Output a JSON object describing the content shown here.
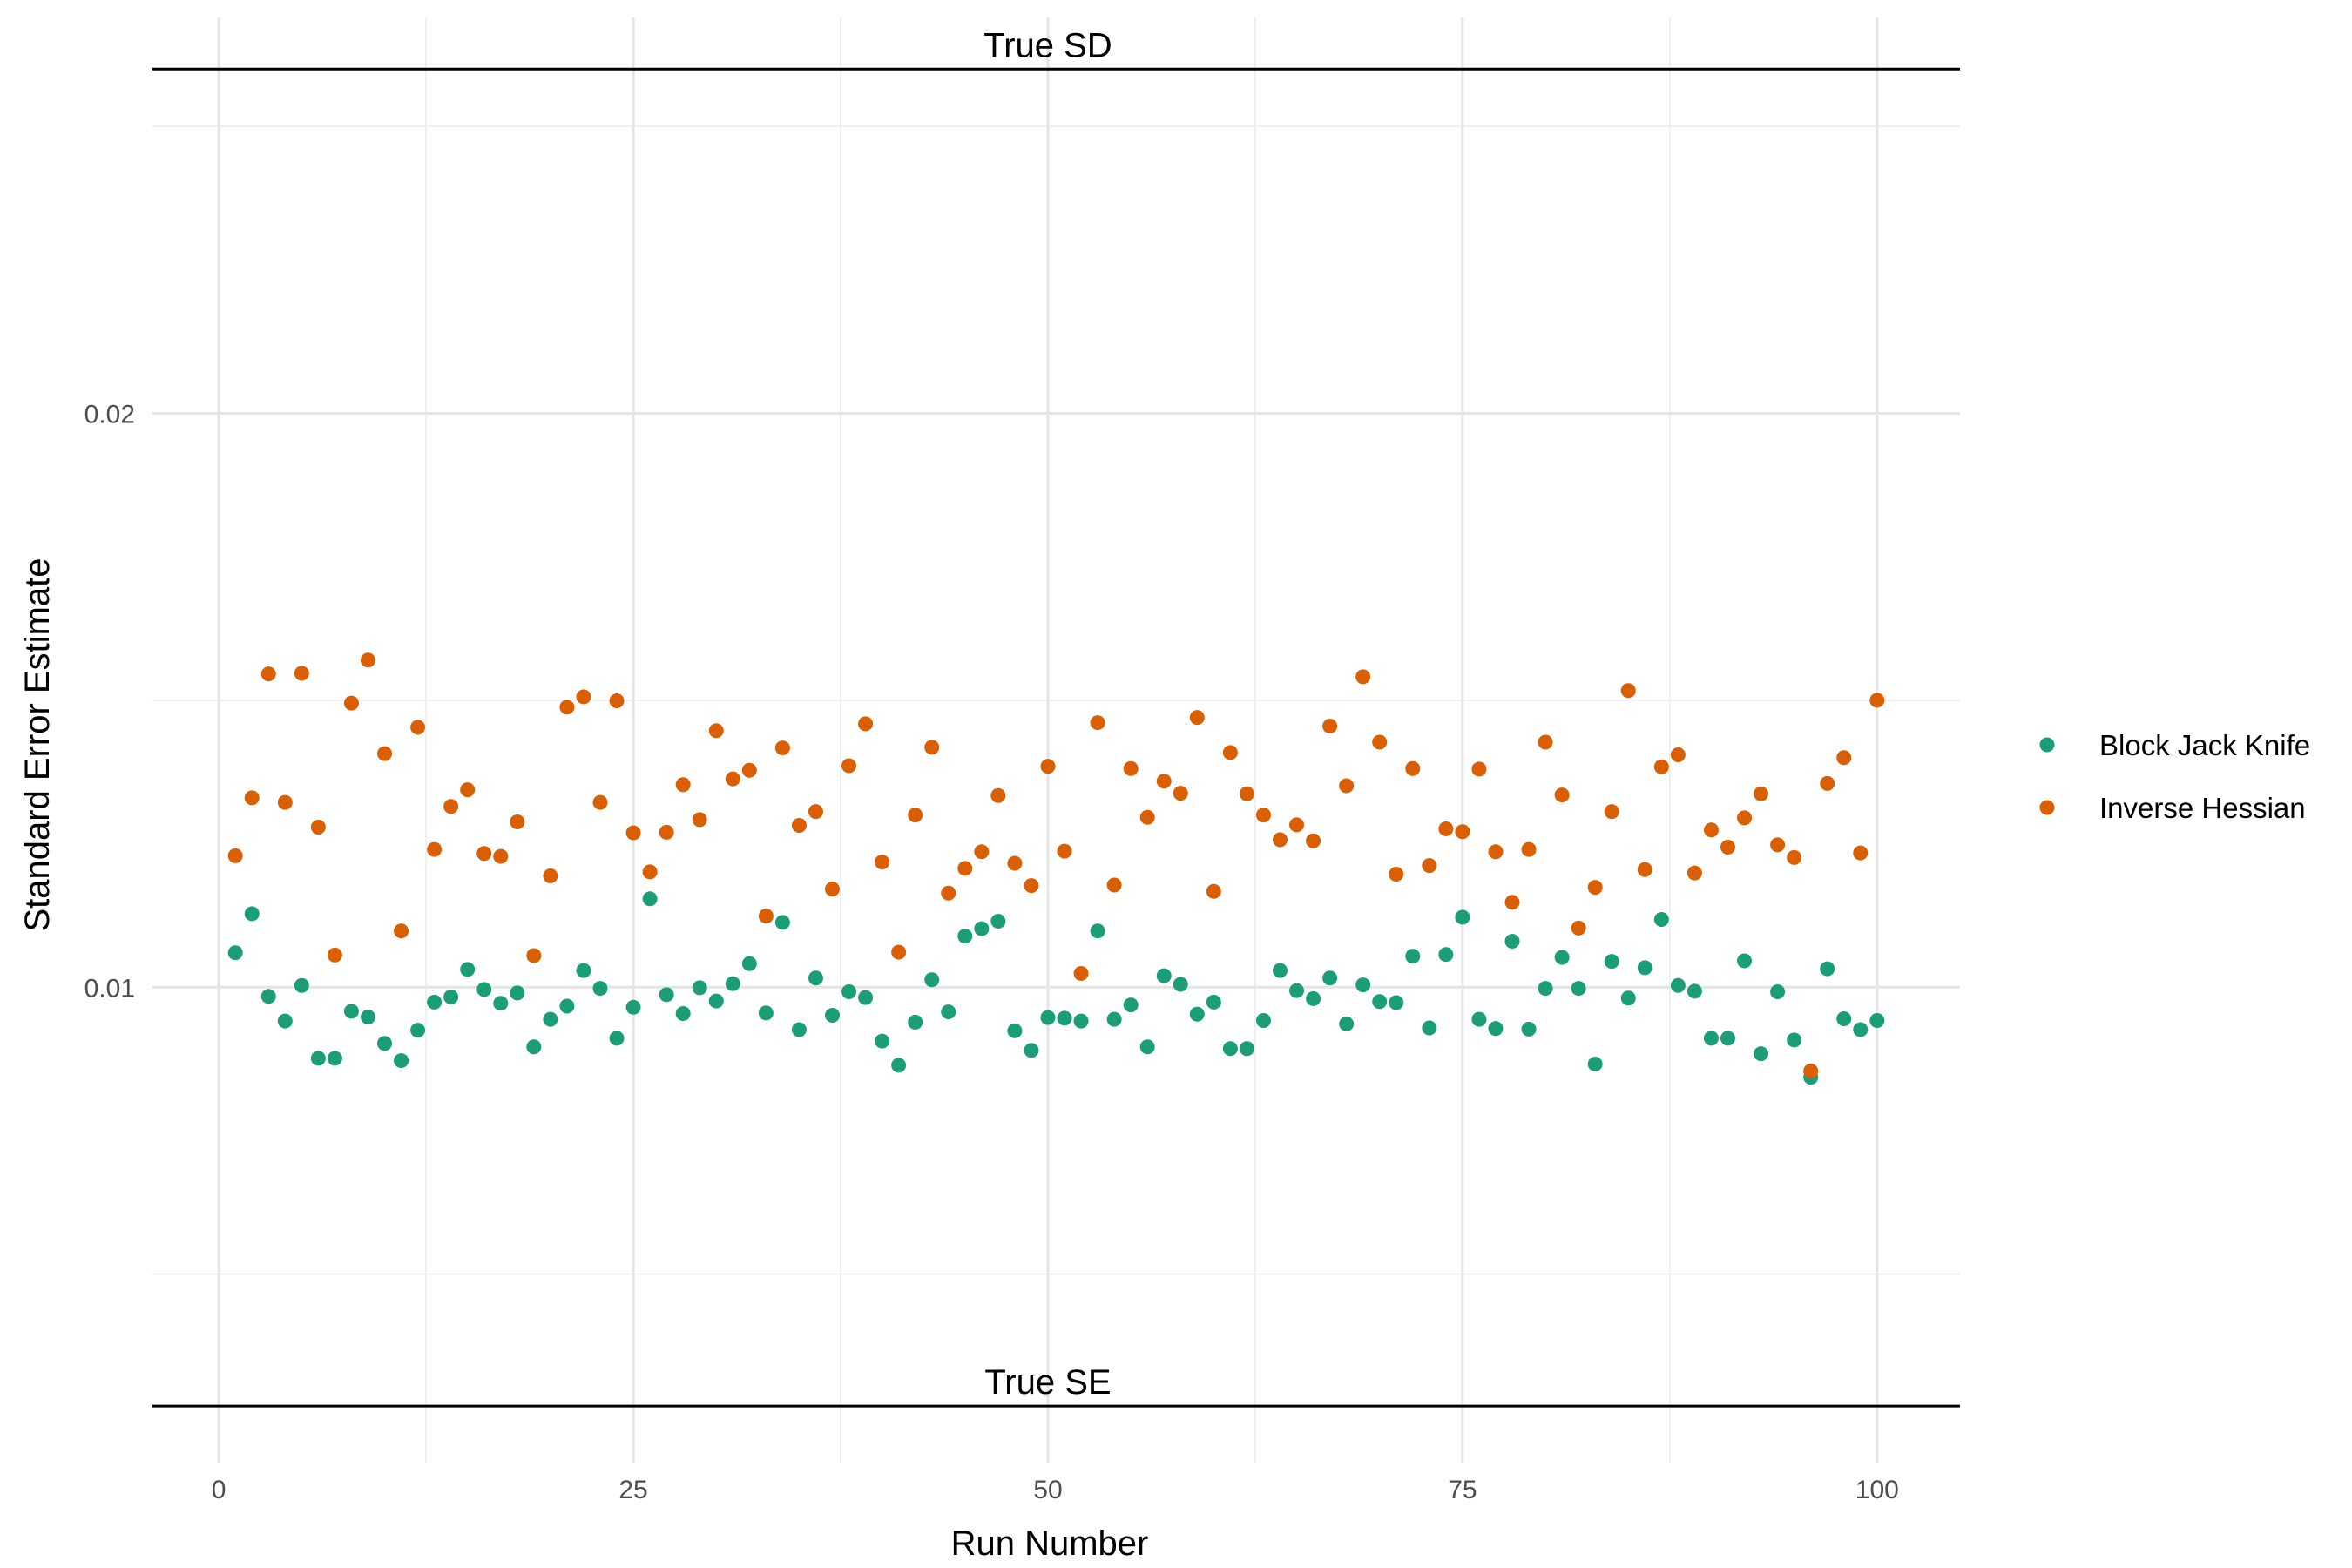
{
  "chart_data": {
    "type": "scatter",
    "title": "",
    "xlabel": "Run Number",
    "ylabel": "Standard Error Estimate",
    "xlim": [
      -4,
      105
    ],
    "ylim": [
      0.0017,
      0.0269
    ],
    "x_ticks": [
      0,
      25,
      50,
      75,
      100
    ],
    "x_tick_labels": [
      "0",
      "25",
      "50",
      "75",
      "100"
    ],
    "y_ticks": [
      0.01,
      0.02
    ],
    "y_tick_labels": [
      "0.01",
      "0.02"
    ],
    "y_minor_grid": [
      0.005,
      0.015,
      0.025
    ],
    "x_minor_grid": [
      12.5,
      37.5,
      62.5,
      87.5
    ],
    "grid": true,
    "legend_position": "right",
    "reference_lines": [
      {
        "label": "True SD",
        "y": 0.026
      },
      {
        "label": "True SE",
        "y": 0.0027
      }
    ],
    "series": [
      {
        "name": "Block Jack Knife",
        "color": "#1b9e77",
        "x": [
          1,
          2,
          3,
          4,
          5,
          6,
          7,
          8,
          9,
          10,
          11,
          12,
          13,
          14,
          15,
          16,
          17,
          18,
          19,
          20,
          21,
          22,
          23,
          24,
          25,
          26,
          27,
          28,
          29,
          30,
          31,
          32,
          33,
          34,
          35,
          36,
          37,
          38,
          39,
          40,
          41,
          42,
          43,
          44,
          45,
          46,
          47,
          48,
          49,
          50,
          51,
          52,
          53,
          54,
          55,
          56,
          57,
          58,
          59,
          60,
          61,
          62,
          63,
          64,
          65,
          66,
          67,
          68,
          69,
          70,
          71,
          72,
          73,
          74,
          75,
          76,
          77,
          78,
          79,
          80,
          81,
          82,
          83,
          84,
          85,
          86,
          87,
          88,
          89,
          90,
          91,
          92,
          93,
          94,
          95,
          96,
          97,
          98,
          99,
          100
        ],
        "values": [
          0.0106,
          0.01128,
          0.00984,
          0.00941,
          0.01003,
          0.00876,
          0.00876,
          0.00958,
          0.00948,
          0.00902,
          0.00872,
          0.00925,
          0.00974,
          0.00983,
          0.01031,
          0.00996,
          0.00972,
          0.0099,
          0.00896,
          0.00944,
          0.00967,
          0.01029,
          0.00998,
          0.00911,
          0.00965,
          0.01154,
          0.00987,
          0.00954,
          0.00999,
          0.00976,
          0.01006,
          0.01041,
          0.00955,
          0.01113,
          0.00926,
          0.01016,
          0.00951,
          0.00992,
          0.00982,
          0.00906,
          0.00864,
          0.00939,
          0.01013,
          0.00957,
          0.01089,
          0.01102,
          0.01115,
          0.00924,
          0.0089,
          0.00947,
          0.00946,
          0.00941,
          0.01098,
          0.00944,
          0.00969,
          0.00896,
          0.0102,
          0.01005,
          0.00953,
          0.00974,
          0.00893,
          0.00893,
          0.00942,
          0.01029,
          0.00994,
          0.0098,
          0.01016,
          0.00936,
          0.01004,
          0.00975,
          0.00973,
          0.01054,
          0.00929,
          0.01057,
          0.01122,
          0.00944,
          0.00928,
          0.0108,
          0.00927,
          0.00998,
          0.01052,
          0.00998,
          0.00866,
          0.01045,
          0.00981,
          0.01034,
          0.01118,
          0.01003,
          0.00993,
          0.00911,
          0.00911,
          0.01046,
          0.00884,
          0.00992,
          0.00908,
          0.00843,
          0.01032,
          0.00945,
          0.00926,
          0.00942
        ]
      },
      {
        "name": "Inverse Hessian",
        "color": "#d95f02",
        "x": [
          1,
          2,
          3,
          4,
          5,
          6,
          7,
          8,
          9,
          10,
          11,
          12,
          13,
          14,
          15,
          16,
          17,
          18,
          19,
          20,
          21,
          22,
          23,
          24,
          25,
          26,
          27,
          28,
          29,
          30,
          31,
          32,
          33,
          34,
          35,
          36,
          37,
          38,
          39,
          40,
          41,
          42,
          43,
          44,
          45,
          46,
          47,
          48,
          49,
          50,
          51,
          52,
          53,
          54,
          55,
          56,
          57,
          58,
          59,
          60,
          61,
          62,
          63,
          64,
          65,
          66,
          67,
          68,
          69,
          70,
          71,
          72,
          73,
          74,
          75,
          76,
          77,
          78,
          79,
          80,
          81,
          82,
          83,
          84,
          85,
          86,
          87,
          88,
          89,
          90,
          91,
          92,
          93,
          94,
          95,
          96,
          97,
          98,
          99,
          100
        ],
        "values": [
          0.01229,
          0.0133,
          0.01546,
          0.01322,
          0.01547,
          0.01279,
          0.01056,
          0.01495,
          0.0157,
          0.01407,
          0.01098,
          0.01453,
          0.0124,
          0.01315,
          0.01344,
          0.01233,
          0.01228,
          0.01288,
          0.01055,
          0.01194,
          0.01488,
          0.01506,
          0.01322,
          0.01499,
          0.01269,
          0.01201,
          0.0127,
          0.01353,
          0.01292,
          0.01447,
          0.01363,
          0.01378,
          0.01124,
          0.01417,
          0.01282,
          0.01306,
          0.01171,
          0.01386,
          0.01459,
          0.01218,
          0.01061,
          0.013,
          0.01418,
          0.01164,
          0.01207,
          0.01236,
          0.01334,
          0.01216,
          0.01177,
          0.01385,
          0.01237,
          0.01024,
          0.01461,
          0.01178,
          0.01381,
          0.01296,
          0.01359,
          0.01338,
          0.0147,
          0.01167,
          0.01409,
          0.01337,
          0.013,
          0.01257,
          0.01283,
          0.01255,
          0.01455,
          0.01351,
          0.01541,
          0.01427,
          0.01197,
          0.01381,
          0.01212,
          0.01276,
          0.01271,
          0.0138,
          0.01236,
          0.01148,
          0.0124,
          0.01427,
          0.01335,
          0.01103,
          0.01174,
          0.01306,
          0.01517,
          0.01205,
          0.01384,
          0.01405,
          0.01199,
          0.01274,
          0.01244,
          0.01295,
          0.01337,
          0.01248,
          0.01226,
          0.00854,
          0.01355,
          0.014,
          0.01234,
          0.015
        ]
      }
    ]
  }
}
